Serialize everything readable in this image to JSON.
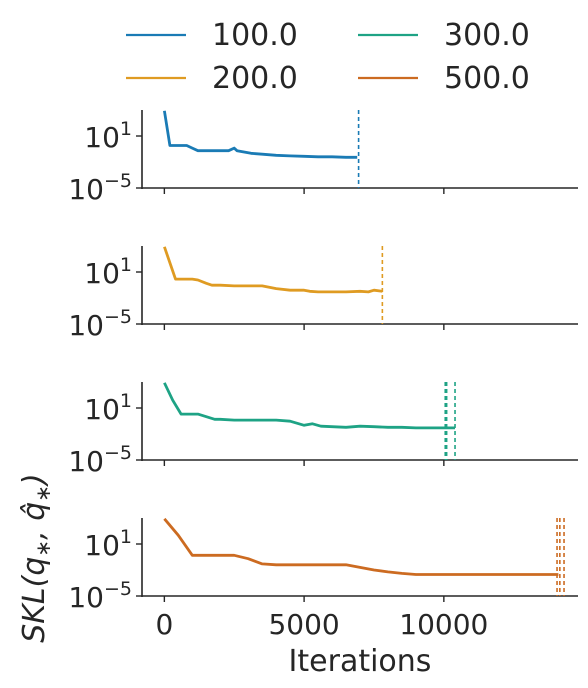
{
  "legend": {
    "placement": "top, 2 columns",
    "entries": [
      {
        "label": "100.0",
        "color": "#1a7bb5"
      },
      {
        "label": "200.0",
        "color": "#df9b22"
      },
      {
        "label": "300.0",
        "color": "#1ea385"
      },
      {
        "label": "500.0",
        "color": "#cc6b21"
      }
    ]
  },
  "chart_data": {
    "type": "line",
    "xlabel": "Iterations",
    "ylabel": "SKL(q*, q̂*)",
    "xlim": [
      -800,
      14800
    ],
    "x_ticks": [
      0,
      5000,
      10000
    ],
    "x_tick_labels": [
      "0",
      "5000",
      "10000"
    ],
    "y_scale": "log",
    "ylim": [
      1e-05,
      10000.0
    ],
    "y_ticks": [
      1e-05,
      10
    ],
    "y_tick_labels": [
      {
        "base": "10",
        "exp": "−5"
      },
      {
        "base": "10",
        "exp": "1"
      }
    ],
    "grid": false,
    "panels": [
      {
        "series_label": "100.0",
        "color": "#1a7bb5",
        "x": [
          0,
          200,
          400,
          600,
          800,
          1000,
          1200,
          1400,
          1700,
          2000,
          2300,
          2500,
          2600,
          2800,
          3100,
          3500,
          4000,
          4500,
          5000,
          5500,
          6000,
          6500,
          6900
        ],
        "y": [
          8000,
          0.8,
          0.8,
          0.8,
          0.8,
          0.4,
          0.2,
          0.2,
          0.2,
          0.2,
          0.2,
          0.4,
          0.2,
          0.15,
          0.1,
          0.08,
          0.06,
          0.05,
          0.045,
          0.04,
          0.04,
          0.035,
          0.035
        ],
        "vlines": [
          6950
        ]
      },
      {
        "series_label": "200.0",
        "color": "#df9b22",
        "x": [
          0,
          400,
          700,
          1000,
          1200,
          1500,
          1700,
          2000,
          2500,
          3000,
          3500,
          4000,
          4500,
          4800,
          5000,
          5200,
          5500,
          6000,
          6500,
          7000,
          7300,
          7500,
          7800
        ],
        "y": [
          8000,
          1.5,
          1.5,
          1.5,
          1.2,
          0.5,
          0.3,
          0.3,
          0.25,
          0.25,
          0.25,
          0.12,
          0.08,
          0.08,
          0.08,
          0.06,
          0.05,
          0.05,
          0.05,
          0.06,
          0.05,
          0.08,
          0.06
        ],
        "vlines": [
          7800
        ]
      },
      {
        "series_label": "300.0",
        "color": "#1ea385",
        "x": [
          0,
          300,
          600,
          1000,
          1200,
          1500,
          1800,
          2000,
          2500,
          3000,
          3500,
          4000,
          4500,
          5000,
          5300,
          5600,
          6000,
          6500,
          7000,
          7500,
          8000,
          8500,
          9000,
          9500,
          10000,
          10400
        ],
        "y": [
          8000,
          80,
          2,
          2,
          2,
          1,
          0.5,
          0.5,
          0.4,
          0.4,
          0.4,
          0.4,
          0.3,
          0.1,
          0.15,
          0.08,
          0.07,
          0.06,
          0.08,
          0.07,
          0.06,
          0.06,
          0.05,
          0.05,
          0.05,
          0.05
        ],
        "vlines": [
          10050,
          10100,
          10400
        ]
      },
      {
        "series_label": "500.0",
        "color": "#cc6b21",
        "x": [
          0,
          500,
          1000,
          1500,
          2000,
          2500,
          3000,
          3500,
          4000,
          5000,
          6000,
          6500,
          7000,
          7500,
          8000,
          8500,
          9000,
          9500,
          10000,
          11000,
          12000,
          13000,
          14100
        ],
        "y": [
          8000,
          100,
          0.5,
          0.5,
          0.5,
          0.5,
          0.2,
          0.05,
          0.04,
          0.04,
          0.04,
          0.04,
          0.02,
          0.01,
          0.006,
          0.004,
          0.003,
          0.003,
          0.003,
          0.003,
          0.003,
          0.003,
          0.003
        ],
        "vlines": [
          14050,
          14150,
          14300
        ]
      }
    ]
  }
}
